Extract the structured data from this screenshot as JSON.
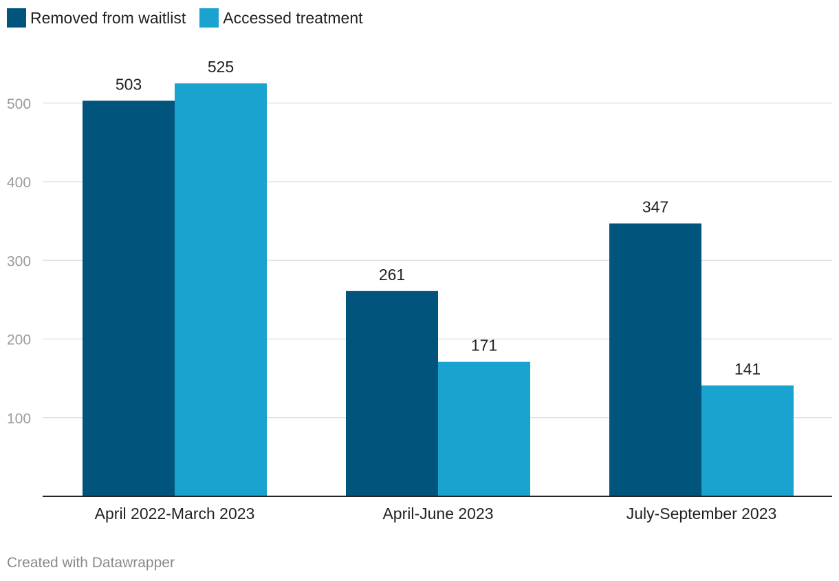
{
  "chart_data": {
    "type": "bar",
    "categories": [
      "April 2022-March 2023",
      "April-June 2023",
      "July-September 2023"
    ],
    "series": [
      {
        "name": "Removed from waitlist",
        "values": [
          503,
          261,
          347
        ],
        "color": "#01547c"
      },
      {
        "name": "Accessed treatment",
        "values": [
          525,
          171,
          141
        ],
        "color": "#1aa3cf"
      }
    ],
    "yticks": [
      100,
      200,
      300,
      400,
      500
    ],
    "ylim": [
      0,
      500
    ],
    "grid": true,
    "legend": "top-left",
    "title": "",
    "xlabel": "",
    "ylabel": ""
  },
  "footer": "Created with Datawrapper"
}
